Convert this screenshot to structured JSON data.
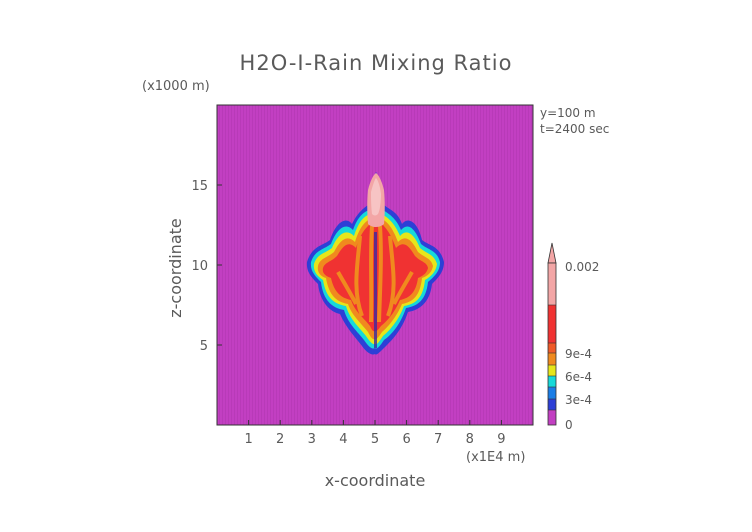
{
  "chart_data": {
    "type": "heatmap",
    "title": "H2O-I-Rain Mixing Ratio",
    "xlabel": "x-coordinate",
    "ylabel": "z-coordinate",
    "x_unit": "(x1E4 m)",
    "y_unit": "(x1000 m)",
    "annotations": [
      "y=100 m",
      "t=2400 sec"
    ],
    "xlim": [
      0,
      10
    ],
    "ylim": [
      0,
      20
    ],
    "x_ticks": [
      "1",
      "2",
      "3",
      "4",
      "5",
      "6",
      "7",
      "8",
      "9"
    ],
    "y_ticks": [
      "5",
      "10",
      "15"
    ],
    "colorbar": {
      "labels": [
        "0.002",
        "9e-4",
        "6e-4",
        "3e-4",
        "0"
      ],
      "extend": "max"
    },
    "background_color": "#c23fc2",
    "field": {
      "description": "rain mixing ratio peaks near x=5, z=9-15 with upward plume reaching ~15.7",
      "cells": [
        {
          "x": 3.6,
          "z": 9.0,
          "value": 0.0012
        },
        {
          "x": 4.2,
          "z": 9.5,
          "value": 0.0013
        },
        {
          "x": 4.7,
          "z": 12.0,
          "value": 0.0015
        },
        {
          "x": 5.0,
          "z": 14.5,
          "value": 0.002
        },
        {
          "x": 5.3,
          "z": 12.0,
          "value": 0.0015
        },
        {
          "x": 5.8,
          "z": 9.5,
          "value": 0.0013
        },
        {
          "x": 6.4,
          "z": 9.0,
          "value": 0.0012
        }
      ]
    }
  }
}
